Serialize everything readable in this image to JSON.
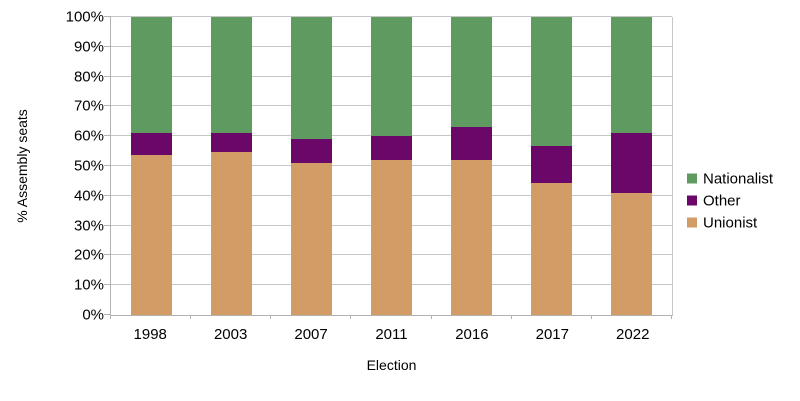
{
  "chart_data": {
    "type": "bar",
    "stacked": true,
    "orientation": "vertical",
    "xlabel": "Election",
    "ylabel": "% Assembly seats",
    "categories": [
      "1998",
      "2003",
      "2007",
      "2011",
      "2016",
      "2017",
      "2022"
    ],
    "series": [
      {
        "name": "Unionist",
        "color": "#d29c66",
        "values": [
          53.7,
          54.6,
          50.9,
          51.9,
          51.9,
          44.4,
          41.1
        ]
      },
      {
        "name": "Other",
        "color": "#6b0769",
        "values": [
          7.4,
          6.5,
          8.3,
          8.3,
          11.1,
          12.2,
          20.0
        ]
      },
      {
        "name": "Nationalist",
        "color": "#5f9b60",
        "values": [
          38.9,
          38.9,
          40.8,
          39.8,
          37.0,
          43.4,
          38.9
        ]
      }
    ],
    "legend": [
      {
        "label": "Nationalist",
        "color": "#5f9b60"
      },
      {
        "label": "Other",
        "color": "#6b0769"
      },
      {
        "label": "Unionist",
        "color": "#d29c66"
      }
    ],
    "legend_position": "right-center",
    "ylim": [
      0,
      100
    ],
    "ytick_step": 10,
    "yticks": [
      "0%",
      "10%",
      "20%",
      "30%",
      "40%",
      "50%",
      "60%",
      "70%",
      "80%",
      "90%",
      "100%"
    ],
    "grid": "horizontal-only",
    "colors": {
      "background": "#ffffff",
      "gridline": "#c6c6c6",
      "axis": "#b2b2b2",
      "text": "#000000"
    }
  }
}
